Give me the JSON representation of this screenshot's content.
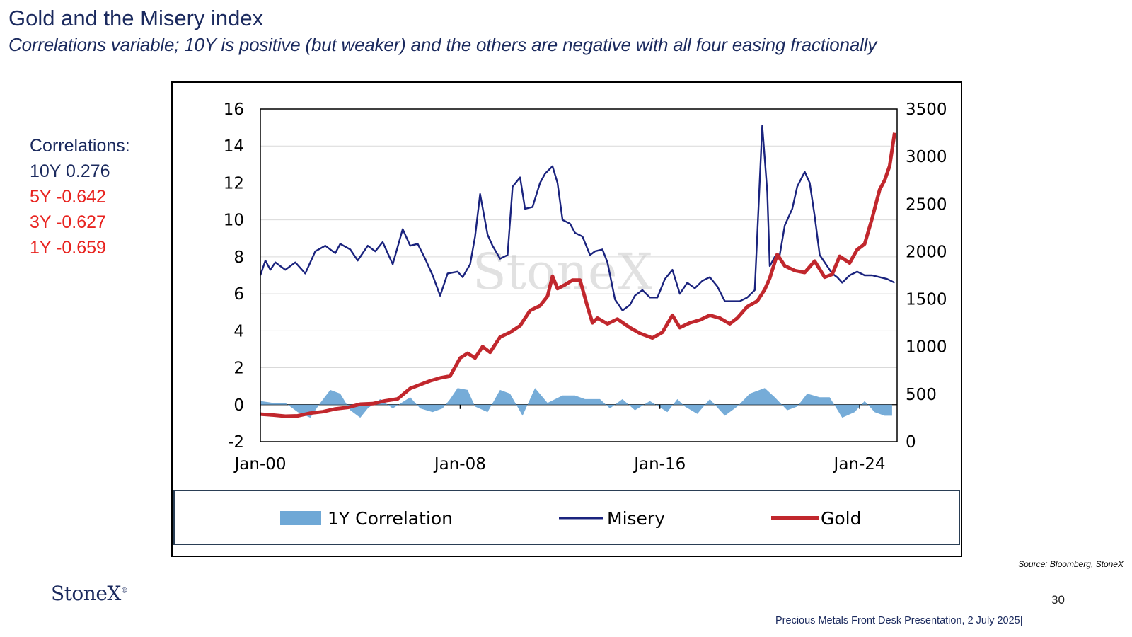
{
  "title": "Gold and the Misery index",
  "subtitle": "Correlations variable; 10Y is positive (but weaker)  and the others are negative with all four easing fractionally",
  "correlations": {
    "heading": "Correlations:",
    "items": [
      {
        "text": "10Y 0.276",
        "color": "#1b2a5e"
      },
      {
        "text": "5Y -0.642",
        "color": "#e8231f"
      },
      {
        "text": "3Y -0.627",
        "color": "#e8231f"
      },
      {
        "text": "1Y -0.659",
        "color": "#e8231f"
      }
    ]
  },
  "source": "Source: Bloomberg, StoneX",
  "logo": "StoneX",
  "watermark": "StoneX",
  "page_number": "30",
  "footer": "Precious Metals Front Desk Presentation, 2 July 2025|",
  "chart_data": {
    "type": "line",
    "title": "",
    "x_labels": [
      "Jan-00",
      "Jan-08",
      "Jan-16",
      "Jan-24"
    ],
    "x_range": [
      2000.0,
      2025.5
    ],
    "y_left": {
      "ticks": [
        "16",
        "14",
        "12",
        "10",
        "8",
        "6",
        "4",
        "2",
        "0",
        "-2"
      ],
      "range": [
        -2,
        16
      ]
    },
    "y_right": {
      "ticks": [
        "3500",
        "3000",
        "2500",
        "2000",
        "1500",
        "1000",
        "500",
        "0"
      ],
      "range": [
        0,
        3500
      ]
    },
    "legend": [
      {
        "label": "1Y Correlation",
        "kind": "area"
      },
      {
        "label": "Misery",
        "kind": "line"
      },
      {
        "label": "Gold",
        "kind": "line"
      }
    ],
    "colors": {
      "correlation": "#6fa8d6",
      "misery": "#1a237e",
      "gold": "#c1272d"
    },
    "series": [
      {
        "name": "Misery",
        "axis": "left",
        "x": [
          2000.0,
          2000.2,
          2000.4,
          2000.6,
          2001.0,
          2001.4,
          2001.8,
          2002.2,
          2002.6,
          2003.0,
          2003.2,
          2003.6,
          2003.9,
          2004.3,
          2004.6,
          2004.9,
          2005.3,
          2005.7,
          2006.0,
          2006.3,
          2006.6,
          2006.9,
          2007.2,
          2007.5,
          2007.9,
          2008.1,
          2008.4,
          2008.6,
          2008.8,
          2009.1,
          2009.3,
          2009.6,
          2009.9,
          2010.1,
          2010.4,
          2010.6,
          2010.9,
          2011.2,
          2011.4,
          2011.7,
          2011.9,
          2012.1,
          2012.4,
          2012.6,
          2012.9,
          2013.2,
          2013.4,
          2013.7,
          2013.9,
          2014.2,
          2014.5,
          2014.8,
          2015.0,
          2015.3,
          2015.6,
          2015.9,
          2016.2,
          2016.5,
          2016.8,
          2017.1,
          2017.4,
          2017.7,
          2018.0,
          2018.3,
          2018.6,
          2018.9,
          2019.2,
          2019.5,
          2019.8,
          2020.1,
          2020.3,
          2020.4,
          2020.6,
          2020.8,
          2021.0,
          2021.3,
          2021.5,
          2021.8,
          2022.0,
          2022.2,
          2022.4,
          2022.6,
          2022.9,
          2023.1,
          2023.3,
          2023.6,
          2023.9,
          2024.2,
          2024.5,
          2024.8,
          2025.1,
          2025.4
        ],
        "values": [
          7.0,
          7.8,
          7.3,
          7.7,
          7.3,
          7.7,
          7.1,
          8.3,
          8.6,
          8.2,
          8.7,
          8.4,
          7.8,
          8.6,
          8.3,
          8.8,
          7.6,
          9.5,
          8.6,
          8.7,
          7.9,
          7.0,
          5.9,
          7.1,
          7.2,
          6.9,
          7.6,
          9.1,
          11.4,
          9.2,
          8.6,
          7.9,
          8.1,
          11.8,
          12.3,
          10.6,
          10.7,
          12.0,
          12.5,
          12.9,
          12.0,
          10.0,
          9.8,
          9.3,
          9.1,
          8.1,
          8.3,
          8.4,
          7.7,
          5.7,
          5.1,
          5.4,
          5.9,
          6.2,
          5.8,
          5.8,
          6.8,
          7.3,
          6.0,
          6.6,
          6.3,
          6.7,
          6.9,
          6.4,
          5.6,
          5.6,
          5.6,
          5.8,
          6.2,
          15.1,
          11.5,
          7.5,
          8.0,
          8.1,
          9.7,
          10.6,
          11.8,
          12.6,
          12.0,
          10.2,
          8.1,
          7.7,
          7.1,
          6.9,
          6.6,
          7.0,
          7.2,
          7.0,
          7.0,
          6.9,
          6.8,
          6.6
        ]
      },
      {
        "name": "Gold",
        "axis": "right",
        "x": [
          2000.0,
          2000.5,
          2001.0,
          2001.5,
          2002.0,
          2002.5,
          2003.0,
          2003.5,
          2004.0,
          2004.5,
          2005.0,
          2005.5,
          2006.0,
          2006.4,
          2006.8,
          2007.2,
          2007.6,
          2008.0,
          2008.3,
          2008.6,
          2008.9,
          2009.2,
          2009.6,
          2010.0,
          2010.4,
          2010.8,
          2011.2,
          2011.5,
          2011.7,
          2011.9,
          2012.2,
          2012.5,
          2012.8,
          2013.1,
          2013.3,
          2013.5,
          2013.9,
          2014.3,
          2014.8,
          2015.2,
          2015.7,
          2016.1,
          2016.5,
          2016.8,
          2017.2,
          2017.6,
          2018.0,
          2018.4,
          2018.8,
          2019.1,
          2019.5,
          2019.9,
          2020.2,
          2020.4,
          2020.7,
          2021.0,
          2021.4,
          2021.8,
          2022.2,
          2022.6,
          2022.9,
          2023.2,
          2023.6,
          2023.9,
          2024.2,
          2024.5,
          2024.8,
          2025.0,
          2025.2,
          2025.4
        ],
        "values": [
          290,
          280,
          268,
          272,
          300,
          315,
          345,
          360,
          395,
          400,
          430,
          450,
          560,
          600,
          640,
          670,
          690,
          880,
          930,
          880,
          1000,
          940,
          1100,
          1150,
          1220,
          1380,
          1430,
          1530,
          1740,
          1610,
          1650,
          1700,
          1700,
          1420,
          1250,
          1300,
          1240,
          1290,
          1200,
          1140,
          1090,
          1150,
          1330,
          1200,
          1250,
          1280,
          1330,
          1300,
          1240,
          1300,
          1420,
          1480,
          1600,
          1720,
          1970,
          1850,
          1800,
          1780,
          1900,
          1730,
          1760,
          1950,
          1880,
          2020,
          2080,
          2350,
          2650,
          2750,
          2900,
          3250
        ]
      },
      {
        "name": "1Y Correlation",
        "axis": "left",
        "type": "area",
        "x": [
          2000.0,
          2000.5,
          2001.0,
          2001.5,
          2002.0,
          2002.4,
          2002.8,
          2003.2,
          2003.6,
          2004.0,
          2004.3,
          2004.8,
          2005.3,
          2006.0,
          2006.4,
          2006.9,
          2007.3,
          2007.6,
          2007.9,
          2008.3,
          2008.6,
          2009.1,
          2009.6,
          2010.0,
          2010.5,
          2011.0,
          2011.5,
          2012.1,
          2012.6,
          2013.0,
          2013.6,
          2014.0,
          2014.5,
          2015.0,
          2015.6,
          2016.3,
          2016.7,
          2017.0,
          2017.5,
          2018.0,
          2018.6,
          2019.1,
          2019.6,
          2020.2,
          2020.6,
          2021.1,
          2021.5,
          2021.9,
          2022.4,
          2022.8,
          2023.3,
          2023.8,
          2024.2,
          2024.6,
          2025.0,
          2025.3
        ],
        "values": [
          0.2,
          0.1,
          0.1,
          -0.4,
          -0.7,
          0.1,
          0.8,
          0.6,
          -0.3,
          -0.7,
          -0.2,
          0.3,
          -0.2,
          0.4,
          -0.2,
          -0.4,
          -0.2,
          0.3,
          0.9,
          0.8,
          -0.1,
          -0.4,
          0.8,
          0.6,
          -0.6,
          0.9,
          0.1,
          0.5,
          0.5,
          0.3,
          0.3,
          -0.2,
          0.3,
          -0.3,
          0.2,
          -0.4,
          0.3,
          -0.1,
          -0.5,
          0.3,
          -0.6,
          -0.1,
          0.6,
          0.9,
          0.4,
          -0.3,
          -0.1,
          0.6,
          0.4,
          0.4,
          -0.7,
          -0.4,
          0.2,
          -0.4,
          -0.6,
          -0.6
        ]
      }
    ]
  }
}
